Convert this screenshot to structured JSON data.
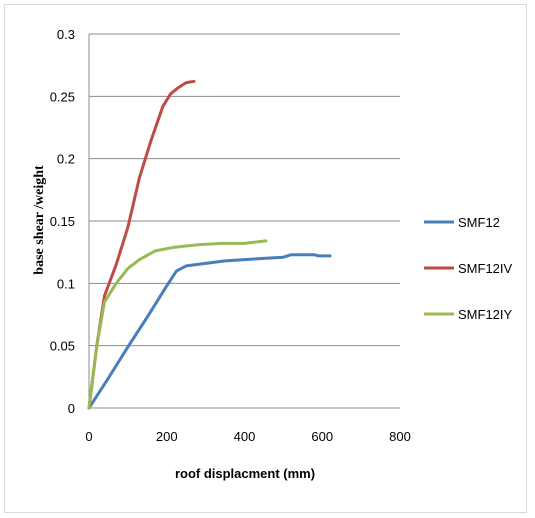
{
  "chart_data": {
    "type": "line",
    "xlabel": "roof displacment (mm)",
    "ylabel": "base shear /weight",
    "xlim": [
      0,
      800
    ],
    "ylim": [
      0,
      0.3
    ],
    "x_ticks": [
      "0",
      "200",
      "400",
      "600",
      "800"
    ],
    "y_ticks": [
      "0",
      "0.05",
      "0.1",
      "0.15",
      "0.2",
      "0.25",
      "0.3"
    ],
    "grid": "horizontal",
    "legend_position": "right",
    "series": [
      {
        "name": "SMF12",
        "color": "#4a7ebb",
        "points": [
          [
            0,
            0
          ],
          [
            50,
            0.024
          ],
          [
            100,
            0.049
          ],
          [
            150,
            0.073
          ],
          [
            200,
            0.098
          ],
          [
            225,
            0.11
          ],
          [
            250,
            0.114
          ],
          [
            300,
            0.116
          ],
          [
            350,
            0.118
          ],
          [
            400,
            0.119
          ],
          [
            450,
            0.12
          ],
          [
            500,
            0.121
          ],
          [
            520,
            0.123
          ],
          [
            580,
            0.123
          ],
          [
            590,
            0.122
          ],
          [
            600,
            0.122
          ],
          [
            620,
            0.122
          ]
        ]
      },
      {
        "name": "SMF12IV",
        "color": "#be4b48",
        "points": [
          [
            0,
            0
          ],
          [
            20,
            0.05
          ],
          [
            40,
            0.09
          ],
          [
            70,
            0.115
          ],
          [
            100,
            0.145
          ],
          [
            130,
            0.185
          ],
          [
            160,
            0.215
          ],
          [
            190,
            0.242
          ],
          [
            210,
            0.252
          ],
          [
            230,
            0.257
          ],
          [
            250,
            0.261
          ],
          [
            270,
            0.262
          ]
        ]
      },
      {
        "name": "SMF12IY",
        "color": "#98b954",
        "points": [
          [
            0,
            0
          ],
          [
            20,
            0.05
          ],
          [
            40,
            0.085
          ],
          [
            70,
            0.1
          ],
          [
            100,
            0.112
          ],
          [
            130,
            0.119
          ],
          [
            170,
            0.126
          ],
          [
            220,
            0.129
          ],
          [
            280,
            0.131
          ],
          [
            340,
            0.132
          ],
          [
            400,
            0.132
          ],
          [
            455,
            0.134
          ]
        ]
      }
    ]
  }
}
